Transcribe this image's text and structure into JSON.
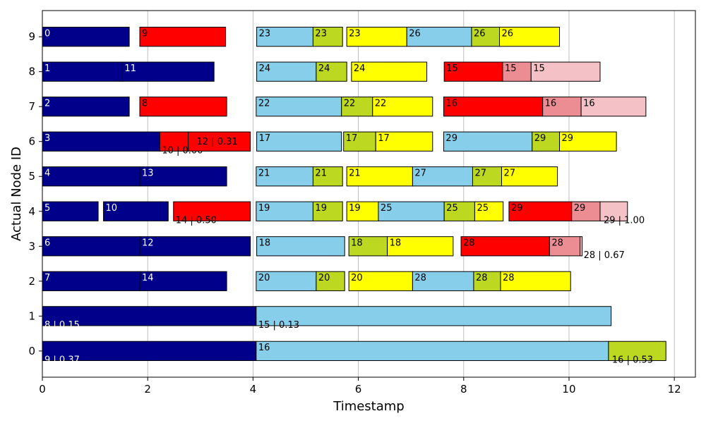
{
  "chart_data": {
    "type": "gantt",
    "xlabel": "Timestamp",
    "ylabel": "Actual Node ID",
    "xlim": [
      0,
      12.4
    ],
    "ylim": [
      -0.75,
      9.75
    ],
    "x_ticks": [
      "0",
      "2",
      "4",
      "6",
      "8",
      "10",
      "12"
    ],
    "y_ticks": [
      "0",
      "1",
      "2",
      "3",
      "4",
      "5",
      "6",
      "7",
      "8",
      "9"
    ],
    "highlighted_y_ticks": [
      "0",
      "1"
    ],
    "grid": "vertical",
    "colors": {
      "navy": "#00008b",
      "skyblue": "#87ceeb",
      "green": "#bcd820",
      "yellow": "#ffff00",
      "red": "#ff0000",
      "salmon": "#ec8d93",
      "pink": "#f4c2c6",
      "highlight_tick": "#ff0000"
    },
    "bars": [
      {
        "node": 9,
        "start": 0.0,
        "end": 1.65,
        "color": "navy",
        "label": "0"
      },
      {
        "node": 9,
        "start": 1.85,
        "end": 3.48,
        "color": "red",
        "label": "9"
      },
      {
        "node": 9,
        "start": 4.07,
        "end": 5.14,
        "color": "skyblue",
        "label": "23"
      },
      {
        "node": 9,
        "start": 5.14,
        "end": 5.7,
        "color": "green",
        "label": "23"
      },
      {
        "node": 9,
        "start": 5.78,
        "end": 6.92,
        "color": "yellow",
        "label": "23"
      },
      {
        "node": 9,
        "start": 6.92,
        "end": 8.15,
        "color": "skyblue",
        "label": "26"
      },
      {
        "node": 9,
        "start": 8.15,
        "end": 8.68,
        "color": "green",
        "label": "26"
      },
      {
        "node": 9,
        "start": 8.68,
        "end": 9.82,
        "color": "yellow",
        "label": "26"
      },
      {
        "node": 8,
        "start": 0.0,
        "end": 1.52,
        "color": "navy",
        "label": "1"
      },
      {
        "node": 8,
        "start": 1.52,
        "end": 3.26,
        "color": "navy",
        "label": "11"
      },
      {
        "node": 8,
        "start": 4.07,
        "end": 5.2,
        "color": "skyblue",
        "label": "24"
      },
      {
        "node": 8,
        "start": 5.2,
        "end": 5.78,
        "color": "green",
        "label": "24"
      },
      {
        "node": 8,
        "start": 5.87,
        "end": 7.3,
        "color": "yellow",
        "label": "24"
      },
      {
        "node": 8,
        "start": 7.63,
        "end": 8.74,
        "color": "red",
        "label": "15"
      },
      {
        "node": 8,
        "start": 8.74,
        "end": 9.28,
        "color": "salmon",
        "label": "15"
      },
      {
        "node": 8,
        "start": 9.28,
        "end": 10.59,
        "color": "pink",
        "label": "15"
      },
      {
        "node": 7,
        "start": 0.0,
        "end": 1.65,
        "color": "navy",
        "label": "2"
      },
      {
        "node": 7,
        "start": 1.85,
        "end": 3.5,
        "color": "red",
        "label": "8"
      },
      {
        "node": 7,
        "start": 4.06,
        "end": 5.68,
        "color": "skyblue",
        "label": "22"
      },
      {
        "node": 7,
        "start": 5.68,
        "end": 6.27,
        "color": "green",
        "label": "22"
      },
      {
        "node": 7,
        "start": 6.27,
        "end": 7.41,
        "color": "yellow",
        "label": "22"
      },
      {
        "node": 7,
        "start": 7.62,
        "end": 9.5,
        "color": "red",
        "label": "16"
      },
      {
        "node": 7,
        "start": 9.5,
        "end": 10.23,
        "color": "salmon",
        "label": "16"
      },
      {
        "node": 7,
        "start": 10.23,
        "end": 11.46,
        "color": "pink",
        "label": "16"
      },
      {
        "node": 6,
        "start": 0.0,
        "end": 2.23,
        "color": "navy",
        "label": "3"
      },
      {
        "node": 6,
        "start": 2.23,
        "end": 2.77,
        "color": "red",
        "label": "10 | 0.00",
        "label_pos": "below"
      },
      {
        "node": 6,
        "start": 2.77,
        "end": 3.95,
        "color": "red",
        "label": "12 | 0.31",
        "label_pos": "right-inside"
      },
      {
        "node": 6,
        "start": 4.07,
        "end": 5.68,
        "color": "skyblue",
        "label": "17"
      },
      {
        "node": 6,
        "start": 5.72,
        "end": 6.33,
        "color": "green",
        "label": "17"
      },
      {
        "node": 6,
        "start": 6.33,
        "end": 7.41,
        "color": "yellow",
        "label": "17"
      },
      {
        "node": 6,
        "start": 7.62,
        "end": 9.3,
        "color": "skyblue",
        "label": "29"
      },
      {
        "node": 6,
        "start": 9.3,
        "end": 9.82,
        "color": "green",
        "label": "29"
      },
      {
        "node": 6,
        "start": 9.82,
        "end": 10.9,
        "color": "yellow",
        "label": "29"
      },
      {
        "node": 5,
        "start": 0.0,
        "end": 1.85,
        "color": "navy",
        "label": "4"
      },
      {
        "node": 5,
        "start": 1.85,
        "end": 3.5,
        "color": "navy",
        "label": "13"
      },
      {
        "node": 5,
        "start": 4.06,
        "end": 5.14,
        "color": "skyblue",
        "label": "21"
      },
      {
        "node": 5,
        "start": 5.14,
        "end": 5.7,
        "color": "green",
        "label": "21"
      },
      {
        "node": 5,
        "start": 5.78,
        "end": 7.03,
        "color": "yellow",
        "label": "21"
      },
      {
        "node": 5,
        "start": 7.03,
        "end": 8.17,
        "color": "skyblue",
        "label": "27"
      },
      {
        "node": 5,
        "start": 8.17,
        "end": 8.72,
        "color": "green",
        "label": "27"
      },
      {
        "node": 5,
        "start": 8.72,
        "end": 9.78,
        "color": "yellow",
        "label": "27"
      },
      {
        "node": 4,
        "start": 0.0,
        "end": 1.06,
        "color": "navy",
        "label": "5"
      },
      {
        "node": 4,
        "start": 1.16,
        "end": 2.39,
        "color": "navy",
        "label": "10"
      },
      {
        "node": 4,
        "start": 2.49,
        "end": 3.95,
        "color": "red",
        "label": "14 | 0.50",
        "label_pos": "below"
      },
      {
        "node": 4,
        "start": 4.06,
        "end": 5.14,
        "color": "skyblue",
        "label": "19"
      },
      {
        "node": 4,
        "start": 5.14,
        "end": 5.7,
        "color": "green",
        "label": "19"
      },
      {
        "node": 4,
        "start": 5.78,
        "end": 6.38,
        "color": "yellow",
        "label": "19"
      },
      {
        "node": 4,
        "start": 6.38,
        "end": 7.63,
        "color": "skyblue",
        "label": "25"
      },
      {
        "node": 4,
        "start": 7.63,
        "end": 8.21,
        "color": "green",
        "label": "25"
      },
      {
        "node": 4,
        "start": 8.21,
        "end": 8.75,
        "color": "yellow",
        "label": "25"
      },
      {
        "node": 4,
        "start": 8.86,
        "end": 10.05,
        "color": "red",
        "label": "29"
      },
      {
        "node": 4,
        "start": 10.05,
        "end": 10.59,
        "color": "salmon",
        "label": "29"
      },
      {
        "node": 4,
        "start": 10.59,
        "end": 11.11,
        "color": "pink",
        "label": "29 | 1.00",
        "label_pos": "below"
      },
      {
        "node": 3,
        "start": 0.0,
        "end": 1.85,
        "color": "navy",
        "label": "6"
      },
      {
        "node": 3,
        "start": 1.85,
        "end": 3.95,
        "color": "navy",
        "label": "12"
      },
      {
        "node": 3,
        "start": 4.07,
        "end": 5.74,
        "color": "skyblue",
        "label": "18"
      },
      {
        "node": 3,
        "start": 5.82,
        "end": 6.55,
        "color": "green",
        "label": "18"
      },
      {
        "node": 3,
        "start": 6.55,
        "end": 7.8,
        "color": "yellow",
        "label": "18"
      },
      {
        "node": 3,
        "start": 7.95,
        "end": 9.63,
        "color": "red",
        "label": "28"
      },
      {
        "node": 3,
        "start": 9.63,
        "end": 10.21,
        "color": "salmon",
        "label": "28"
      },
      {
        "node": 3,
        "start": 10.21,
        "end": 10.25,
        "color": "pink",
        "label": "28 | 0.67",
        "label_pos": "below"
      },
      {
        "node": 2,
        "start": 0.0,
        "end": 1.85,
        "color": "navy",
        "label": "7"
      },
      {
        "node": 2,
        "start": 1.85,
        "end": 3.5,
        "color": "navy",
        "label": "14"
      },
      {
        "node": 2,
        "start": 4.06,
        "end": 5.2,
        "color": "skyblue",
        "label": "20"
      },
      {
        "node": 2,
        "start": 5.2,
        "end": 5.74,
        "color": "green",
        "label": "20"
      },
      {
        "node": 2,
        "start": 5.82,
        "end": 7.03,
        "color": "yellow",
        "label": "20"
      },
      {
        "node": 2,
        "start": 7.03,
        "end": 8.19,
        "color": "skyblue",
        "label": "28"
      },
      {
        "node": 2,
        "start": 8.19,
        "end": 8.7,
        "color": "green",
        "label": "28"
      },
      {
        "node": 2,
        "start": 8.7,
        "end": 10.03,
        "color": "yellow",
        "label": "28"
      },
      {
        "node": 1,
        "start": 0.0,
        "end": 4.06,
        "color": "navy",
        "label": "8 | 0.15",
        "label_pos": "below"
      },
      {
        "node": 1,
        "start": 4.06,
        "end": 10.8,
        "color": "skyblue",
        "label": "15 | 0.13",
        "label_pos": "below"
      },
      {
        "node": 0,
        "start": 0.0,
        "end": 4.06,
        "color": "navy",
        "label": "9 | 0.37",
        "label_pos": "below"
      },
      {
        "node": 0,
        "start": 4.06,
        "end": 10.75,
        "color": "skyblue",
        "label": "16"
      },
      {
        "node": 0,
        "start": 10.75,
        "end": 11.84,
        "color": "green",
        "label": "16 | 0.53",
        "label_pos": "below"
      }
    ]
  }
}
